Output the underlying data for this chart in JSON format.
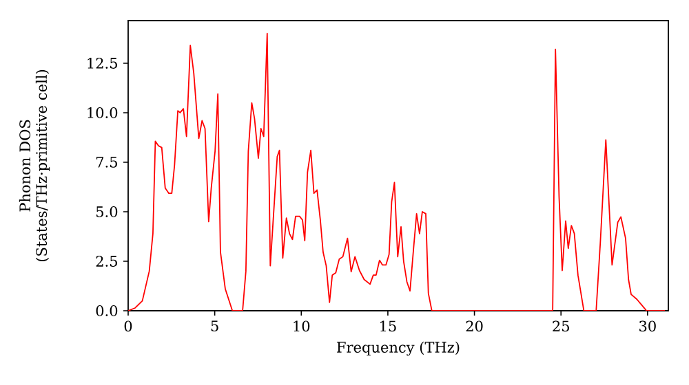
{
  "chart_data": {
    "type": "line",
    "xlabel": "Frequency (THz)",
    "ylabel": "Phonon DOS (States/THz·primitive cell)",
    "xlim": [
      0,
      31.2
    ],
    "ylim": [
      0,
      14.65
    ],
    "xticks": [
      0,
      5,
      10,
      15,
      20,
      25,
      30
    ],
    "yticks": [
      {
        "value": 0,
        "label": "0.0"
      },
      {
        "value": 2.5,
        "label": "2.5"
      },
      {
        "value": 5,
        "label": "5.0"
      },
      {
        "value": 7.5,
        "label": "7.5"
      },
      {
        "value": 10,
        "label": "10.0"
      },
      {
        "value": 12.5,
        "label": "12.5"
      }
    ],
    "grid": false,
    "marker": "none",
    "line_style": "solid",
    "series": [
      {
        "color": "#ff0000",
        "x": [
          0,
          0.4,
          0.82,
          1.22,
          1.43,
          1.57,
          1.75,
          1.94,
          2.14,
          2.35,
          2.52,
          2.68,
          2.87,
          3.0,
          3.19,
          3.37,
          3.59,
          3.79,
          4.08,
          4.27,
          4.44,
          4.65,
          4.8,
          5.02,
          5.18,
          5.33,
          5.61,
          6.02,
          6.61,
          6.8,
          6.94,
          7.14,
          7.3,
          7.52,
          7.67,
          7.83,
          8.03,
          8.21,
          8.61,
          8.74,
          8.93,
          9.14,
          9.32,
          9.49,
          9.67,
          9.9,
          10.07,
          10.2,
          10.36,
          10.55,
          10.73,
          10.91,
          11.1,
          11.26,
          11.44,
          11.63,
          11.79,
          11.99,
          12.19,
          12.4,
          12.67,
          12.88,
          13.1,
          13.36,
          13.63,
          13.97,
          14.16,
          14.32,
          14.52,
          14.69,
          14.89,
          15.07,
          15.22,
          15.38,
          15.57,
          15.76,
          15.91,
          16.1,
          16.28,
          16.49,
          16.66,
          16.83,
          16.99,
          17.19,
          17.34,
          17.54,
          24.52,
          24.68,
          24.89,
          25.07,
          25.27,
          25.42,
          25.6,
          25.77,
          25.98,
          26.32,
          27.03,
          27.27,
          27.59,
          27.95,
          28.28,
          28.46,
          28.73,
          28.9,
          29.05,
          29.38,
          29.72,
          29.94,
          31.0
        ],
        "values": [
          0,
          0.14,
          0.5,
          2.0,
          3.9,
          8.56,
          8.33,
          8.24,
          6.2,
          5.93,
          5.93,
          7.36,
          10.1,
          10.0,
          10.2,
          8.8,
          13.4,
          12.0,
          8.7,
          9.6,
          9.2,
          4.5,
          6.2,
          8.06,
          10.95,
          2.97,
          1.1,
          0,
          0,
          2.0,
          8.06,
          10.5,
          9.7,
          7.7,
          9.2,
          8.8,
          14.0,
          2.27,
          7.78,
          8.1,
          2.66,
          4.68,
          3.89,
          3.6,
          4.77,
          4.77,
          4.58,
          3.54,
          7.0,
          8.1,
          5.93,
          6.1,
          4.58,
          2.96,
          2.27,
          0.42,
          1.8,
          1.92,
          2.6,
          2.73,
          3.66,
          1.97,
          2.73,
          2.03,
          1.58,
          1.34,
          1.8,
          1.8,
          2.55,
          2.31,
          2.31,
          2.85,
          5.5,
          6.48,
          2.73,
          4.24,
          2.5,
          1.46,
          1.0,
          3.2,
          4.9,
          3.89,
          5.0,
          4.9,
          0.88,
          0,
          0,
          13.2,
          5.74,
          2.03,
          4.53,
          3.15,
          4.3,
          3.9,
          1.8,
          0,
          0,
          3.42,
          8.63,
          2.31,
          4.47,
          4.74,
          3.66,
          1.58,
          0.83,
          0.58,
          0.23,
          0,
          0
        ]
      }
    ]
  }
}
